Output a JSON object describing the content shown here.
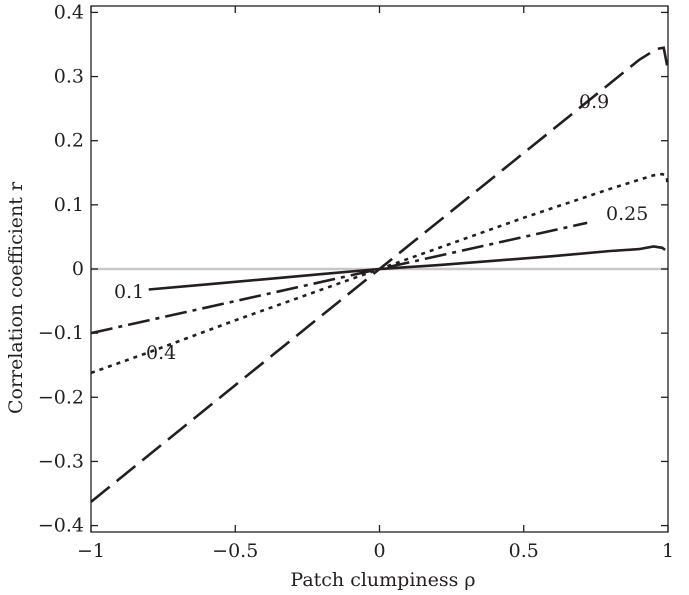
{
  "chart_data": {
    "type": "line",
    "title": "",
    "xlabel": "Patch clumpiness ρ",
    "ylabel": "Correlation coefficient r",
    "xlim": [
      -1,
      1
    ],
    "ylim": [
      -0.41,
      0.41
    ],
    "x_ticks": [
      -1,
      -0.5,
      0,
      0.5,
      1
    ],
    "x_tick_labels": [
      "−1",
      "−0.5",
      "0",
      "0.5",
      "1"
    ],
    "y_ticks": [
      -0.4,
      -0.3,
      -0.2,
      -0.1,
      0,
      0.1,
      0.2,
      0.3,
      0.4
    ],
    "y_tick_labels": [
      "−0.4",
      "−0.3",
      "−0.2",
      "−0.1",
      "0",
      "0.1",
      "0.2",
      "0.3",
      "0.4"
    ],
    "reference_line_y": 0,
    "grid": false,
    "legend": "none",
    "series": [
      {
        "label": "0.1",
        "style": "solid",
        "x": [
          -0.8,
          -0.6,
          -0.4,
          -0.2,
          0,
          0.1,
          0.2,
          0.4,
          0.6,
          0.8,
          0.9,
          0.95,
          0.98,
          0.99
        ],
        "y": [
          -0.032,
          -0.024,
          -0.016,
          -0.008,
          0,
          0.003,
          0.006,
          0.013,
          0.02,
          0.028,
          0.031,
          0.035,
          0.033,
          0.03
        ]
      },
      {
        "label": "0.25",
        "style": "dash-dot",
        "x": [
          -1,
          -0.5,
          0,
          0.5,
          0.72
        ],
        "y": [
          -0.1,
          -0.05,
          0,
          0.05,
          0.072
        ]
      },
      {
        "label": "0.4",
        "style": "dotted",
        "x": [
          -1,
          -0.8,
          -0.5,
          0,
          0.5,
          0.8,
          0.9,
          0.95,
          0.98,
          0.995,
          1.0
        ],
        "y": [
          -0.162,
          -0.13,
          -0.08,
          0,
          0.08,
          0.125,
          0.139,
          0.146,
          0.148,
          0.145,
          0.128
        ]
      },
      {
        "label": "0.9",
        "style": "long-dash",
        "x": [
          -1,
          -0.5,
          0,
          0.5,
          0.9,
          0.96,
          0.985,
          1.0
        ],
        "y": [
          -0.363,
          -0.181,
          0,
          0.181,
          0.326,
          0.343,
          0.345,
          0.31
        ]
      }
    ]
  }
}
